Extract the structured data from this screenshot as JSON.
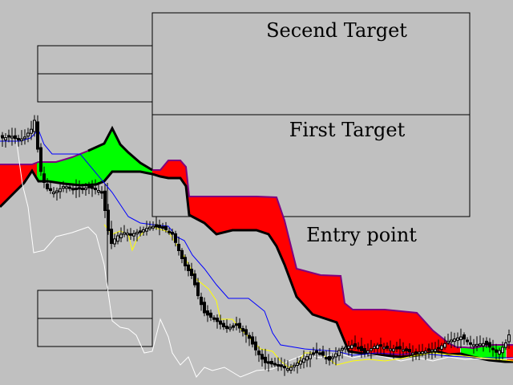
{
  "chart_data": {
    "type": "line",
    "colors": {
      "background": "#c0c0c0",
      "bearish_cloud": "#ff0000",
      "bullish_cloud": "#00ff00",
      "senkou_b": "#000000",
      "senkou_a_border": "#800080",
      "kijun_sen": "#0000ff",
      "tenkan_sen": "#ffff00",
      "chikou_span": "#ffffff",
      "candles": "#000000",
      "boxes": "#000000"
    },
    "annotations": {
      "second_target": "Secend Target",
      "first_target": "First Target",
      "entry_point": "Entry point"
    },
    "price_range": [
      0,
      480
    ],
    "series": {
      "cloud_top": [
        [
          0,
          205
        ],
        [
          15,
          205
        ],
        [
          40,
          205
        ],
        [
          48,
          202
        ],
        [
          70,
          202
        ],
        [
          90,
          196
        ],
        [
          110,
          188
        ],
        [
          130,
          179
        ],
        [
          140,
          160
        ],
        [
          150,
          180
        ],
        [
          160,
          190
        ],
        [
          175,
          203
        ],
        [
          190,
          212
        ],
        [
          200,
          212
        ],
        [
          210,
          200
        ],
        [
          225,
          200
        ],
        [
          232,
          208
        ],
        [
          236,
          245
        ],
        [
          280,
          245
        ],
        [
          320,
          245
        ],
        [
          345,
          246
        ],
        [
          355,
          275
        ],
        [
          370,
          335
        ],
        [
          400,
          343
        ],
        [
          425,
          344
        ],
        [
          430,
          378
        ],
        [
          440,
          386
        ],
        [
          480,
          386
        ],
        [
          520,
          390
        ],
        [
          540,
          412
        ],
        [
          550,
          420
        ],
        [
          560,
          428
        ],
        [
          570,
          433
        ],
        [
          580,
          433
        ],
        [
          590,
          434
        ],
        [
          600,
          432
        ],
        [
          615,
          430
        ],
        [
          630,
          430
        ],
        [
          640,
          430
        ]
      ],
      "cloud_bottom": [
        [
          0,
          258
        ],
        [
          10,
          248
        ],
        [
          20,
          238
        ],
        [
          30,
          228
        ],
        [
          40,
          213
        ],
        [
          48,
          226
        ],
        [
          60,
          226
        ],
        [
          80,
          229
        ],
        [
          100,
          231
        ],
        [
          120,
          230
        ],
        [
          130,
          226
        ],
        [
          140,
          214
        ],
        [
          150,
          214
        ],
        [
          160,
          214
        ],
        [
          175,
          214
        ],
        [
          190,
          217
        ],
        [
          200,
          220
        ],
        [
          210,
          222
        ],
        [
          225,
          222
        ],
        [
          232,
          232
        ],
        [
          236,
          268
        ],
        [
          255,
          278
        ],
        [
          270,
          292
        ],
        [
          290,
          287
        ],
        [
          320,
          287
        ],
        [
          335,
          292
        ],
        [
          345,
          307
        ],
        [
          355,
          330
        ],
        [
          370,
          370
        ],
        [
          390,
          392
        ],
        [
          420,
          402
        ],
        [
          435,
          438
        ],
        [
          460,
          442
        ],
        [
          480,
          443
        ],
        [
          500,
          445
        ],
        [
          520,
          443
        ],
        [
          545,
          438
        ],
        [
          560,
          442
        ],
        [
          575,
          441
        ],
        [
          590,
          445
        ],
        [
          610,
          449
        ],
        [
          630,
          451
        ],
        [
          640,
          451
        ]
      ],
      "kijun_sen": [
        [
          0,
          176
        ],
        [
          15,
          176
        ],
        [
          25,
          176
        ],
        [
          38,
          172
        ],
        [
          48,
          162
        ],
        [
          55,
          180
        ],
        [
          65,
          192
        ],
        [
          100,
          192
        ],
        [
          115,
          210
        ],
        [
          130,
          228
        ],
        [
          140,
          240
        ],
        [
          150,
          255
        ],
        [
          160,
          270
        ],
        [
          175,
          278
        ],
        [
          190,
          280
        ],
        [
          210,
          282
        ],
        [
          220,
          295
        ],
        [
          230,
          300
        ],
        [
          240,
          318
        ],
        [
          255,
          335
        ],
        [
          270,
          355
        ],
        [
          285,
          372
        ],
        [
          310,
          372
        ],
        [
          330,
          388
        ],
        [
          340,
          415
        ],
        [
          350,
          430
        ],
        [
          380,
          435
        ],
        [
          420,
          438
        ],
        [
          440,
          443
        ],
        [
          470,
          440
        ],
        [
          500,
          442
        ],
        [
          520,
          440
        ],
        [
          540,
          442
        ],
        [
          560,
          444
        ],
        [
          600,
          446
        ],
        [
          640,
          446
        ]
      ],
      "tenkan_sen": [
        [
          130,
          280
        ],
        [
          140,
          292
        ],
        [
          150,
          288
        ],
        [
          160,
          292
        ],
        [
          165,
          312
        ],
        [
          170,
          300
        ],
        [
          180,
          288
        ],
        [
          190,
          283
        ],
        [
          210,
          289
        ],
        [
          230,
          320
        ],
        [
          245,
          348
        ],
        [
          260,
          360
        ],
        [
          270,
          375
        ],
        [
          275,
          398
        ],
        [
          290,
          398
        ],
        [
          300,
          410
        ],
        [
          310,
          420
        ],
        [
          325,
          435
        ],
        [
          340,
          438
        ],
        [
          350,
          450
        ],
        [
          360,
          458
        ],
        [
          370,
          455
        ],
        [
          380,
          440
        ],
        [
          400,
          440
        ],
        [
          420,
          455
        ],
        [
          440,
          450
        ],
        [
          460,
          448
        ],
        [
          480,
          450
        ],
        [
          500,
          447
        ],
        [
          520,
          443
        ],
        [
          540,
          440
        ],
        [
          560,
          442
        ],
        [
          580,
          444
        ],
        [
          600,
          446
        ],
        [
          620,
          448
        ],
        [
          640,
          450
        ]
      ],
      "chikou_span": [
        [
          0,
          172
        ],
        [
          10,
          170
        ],
        [
          20,
          172
        ],
        [
          28,
          230
        ],
        [
          35,
          258
        ],
        [
          42,
          315
        ],
        [
          55,
          312
        ],
        [
          70,
          295
        ],
        [
          90,
          290
        ],
        [
          110,
          283
        ],
        [
          120,
          293
        ],
        [
          130,
          330
        ],
        [
          140,
          400
        ],
        [
          150,
          408
        ],
        [
          160,
          410
        ],
        [
          170,
          418
        ],
        [
          180,
          440
        ],
        [
          190,
          438
        ],
        [
          200,
          398
        ],
        [
          210,
          420
        ],
        [
          215,
          440
        ],
        [
          225,
          455
        ],
        [
          235,
          445
        ],
        [
          245,
          470
        ],
        [
          255,
          458
        ],
        [
          265,
          462
        ],
        [
          280,
          458
        ],
        [
          300,
          470
        ],
        [
          320,
          462
        ],
        [
          340,
          460
        ],
        [
          360,
          450
        ],
        [
          380,
          442
        ],
        [
          400,
          446
        ],
        [
          420,
          440
        ],
        [
          440,
          446
        ],
        [
          460,
          442
        ],
        [
          480,
          445
        ],
        [
          500,
          450
        ],
        [
          520,
          446
        ],
        [
          540,
          450
        ],
        [
          560,
          445
        ],
        [
          580,
          448
        ],
        [
          600,
          447
        ],
        [
          620,
          448
        ],
        [
          640,
          447
        ]
      ],
      "close_path": [
        [
          5,
          172
        ],
        [
          15,
          170
        ],
        [
          22,
          175
        ],
        [
          30,
          172
        ],
        [
          40,
          160
        ],
        [
          43,
          150
        ],
        [
          48,
          195
        ],
        [
          52,
          220
        ],
        [
          58,
          235
        ],
        [
          68,
          240
        ],
        [
          80,
          232
        ],
        [
          95,
          236
        ],
        [
          110,
          234
        ],
        [
          120,
          236
        ],
        [
          128,
          240
        ],
        [
          132,
          270
        ],
        [
          138,
          305
        ],
        [
          145,
          295
        ],
        [
          155,
          290
        ],
        [
          165,
          292
        ],
        [
          175,
          288
        ],
        [
          190,
          282
        ],
        [
          205,
          285
        ],
        [
          215,
          292
        ],
        [
          222,
          310
        ],
        [
          230,
          330
        ],
        [
          240,
          345
        ],
        [
          248,
          372
        ],
        [
          255,
          390
        ],
        [
          262,
          395
        ],
        [
          270,
          400
        ],
        [
          282,
          410
        ],
        [
          295,
          405
        ],
        [
          310,
          420
        ],
        [
          320,
          438
        ],
        [
          330,
          452
        ],
        [
          345,
          455
        ],
        [
          360,
          460
        ],
        [
          375,
          450
        ],
        [
          390,
          440
        ],
        [
          400,
          440
        ],
        [
          410,
          450
        ],
        [
          425,
          435
        ],
        [
          440,
          430
        ],
        [
          455,
          440
        ],
        [
          470,
          430
        ],
        [
          485,
          435
        ],
        [
          500,
          435
        ],
        [
          515,
          440
        ],
        [
          530,
          438
        ],
        [
          545,
          435
        ],
        [
          560,
          425
        ],
        [
          575,
          420
        ],
        [
          590,
          430
        ],
        [
          605,
          428
        ],
        [
          620,
          440
        ],
        [
          630,
          430
        ],
        [
          638,
          410
        ]
      ]
    },
    "cloud_colors": [
      "bullish_cloud",
      "bearish_cloud",
      "bullish_cloud",
      "bearish_cloud",
      "bullish_cloud"
    ],
    "boxes": [
      {
        "role": "second_target",
        "x0": 190,
        "x1": 586,
        "y0": 16,
        "y1": 143
      },
      {
        "role": "first_target",
        "x0": 190,
        "x1": 586,
        "y0": 143,
        "y1": 270
      },
      {
        "role": "plain",
        "x0": 47,
        "x1": 190,
        "y0": 57,
        "y1": 92
      },
      {
        "role": "plain",
        "x0": 47,
        "x1": 190,
        "y0": 92,
        "y1": 127
      },
      {
        "role": "plain",
        "x0": 47,
        "x1": 190,
        "y0": 362,
        "y1": 397
      },
      {
        "role": "plain",
        "x0": 47,
        "x1": 190,
        "y0": 397,
        "y1": 432
      }
    ],
    "vertical_marker": {
      "x": 134,
      "y0": 228,
      "y1": 362
    }
  }
}
